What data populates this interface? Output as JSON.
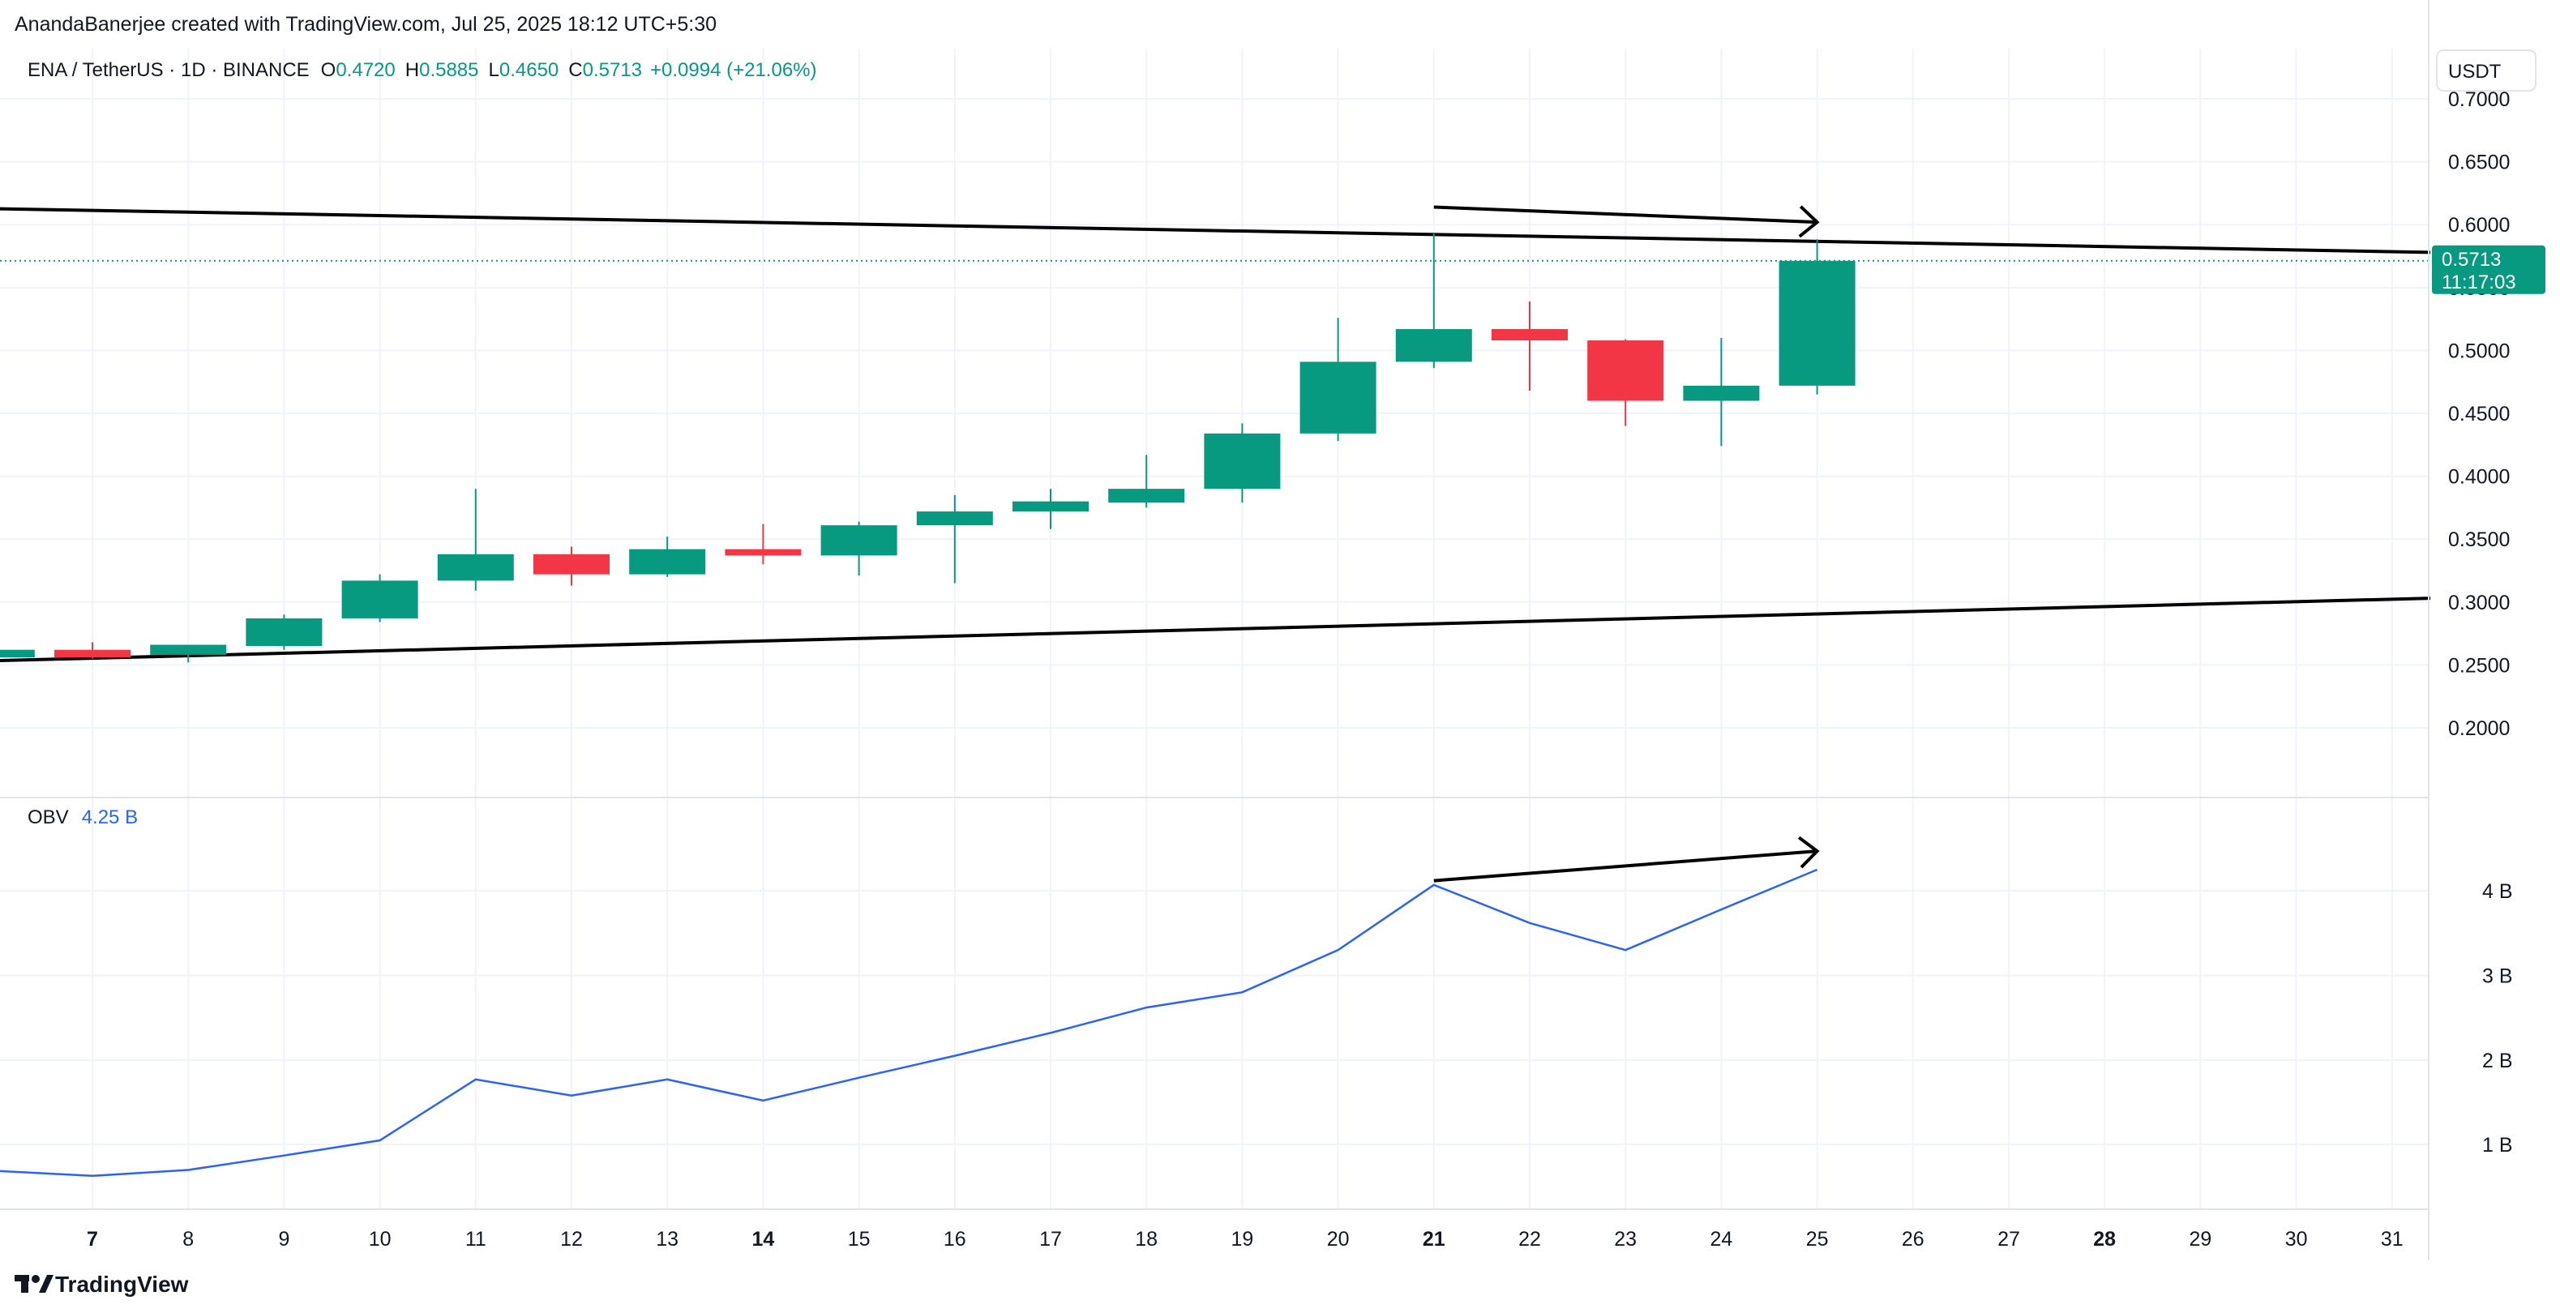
{
  "header": {
    "attribution": "AnandaBanerjee created with TradingView.com, Jul 25, 2025 18:12 UTC+5:30"
  },
  "legend": {
    "symbol": "ENA / TetherUS · 1D · BINANCE",
    "o_label": "O",
    "o_value": "0.4720",
    "h_label": "H",
    "h_value": "0.5885",
    "l_label": "L",
    "l_value": "0.4650",
    "c_label": "C",
    "c_value": "0.5713",
    "change": "+0.0994 (+21.06%)"
  },
  "price_axis": {
    "currency": "USDT",
    "last_price": "0.5713",
    "countdown": "11:17:03"
  },
  "obv_legend": {
    "name": "OBV",
    "value": "4.25 B"
  },
  "footer": {
    "brand": "TradingView"
  },
  "colors": {
    "up": "#089981",
    "down": "#f23645",
    "obv_line": "#2962ff",
    "trendline": "#000000",
    "grid": "#f0f3fa",
    "text": "#131722"
  },
  "chart_data": [
    {
      "type": "candlestick",
      "title": "ENA / TetherUS · 1D · BINANCE",
      "x_ticks": [
        "7",
        "8",
        "9",
        "10",
        "11",
        "12",
        "13",
        "14",
        "15",
        "16",
        "17",
        "18",
        "19",
        "20",
        "21",
        "22",
        "23",
        "24",
        "25",
        "26",
        "27",
        "28",
        "29",
        "30",
        "31"
      ],
      "x_ticks_bold": [
        "7",
        "14",
        "21",
        "28"
      ],
      "y_ticks": [
        "0.7000",
        "0.6500",
        "0.6000",
        "0.5500",
        "0.5000",
        "0.4500",
        "0.4000",
        "0.3500",
        "0.3000",
        "0.2500",
        "0.2000"
      ],
      "ylim": [
        0.16,
        0.74
      ],
      "grid": true,
      "candles": [
        {
          "day": 6,
          "o": 0.256,
          "h": 0.263,
          "l": 0.252,
          "c": 0.262
        },
        {
          "day": 7,
          "o": 0.262,
          "h": 0.268,
          "l": 0.255,
          "c": 0.256
        },
        {
          "day": 8,
          "o": 0.258,
          "h": 0.265,
          "l": 0.252,
          "c": 0.266
        },
        {
          "day": 9,
          "o": 0.265,
          "h": 0.29,
          "l": 0.262,
          "c": 0.287
        },
        {
          "day": 10,
          "o": 0.287,
          "h": 0.322,
          "l": 0.284,
          "c": 0.317
        },
        {
          "day": 11,
          "o": 0.317,
          "h": 0.39,
          "l": 0.309,
          "c": 0.338
        },
        {
          "day": 12,
          "o": 0.338,
          "h": 0.344,
          "l": 0.313,
          "c": 0.322
        },
        {
          "day": 13,
          "o": 0.322,
          "h": 0.352,
          "l": 0.32,
          "c": 0.342
        },
        {
          "day": 14,
          "o": 0.342,
          "h": 0.362,
          "l": 0.33,
          "c": 0.337
        },
        {
          "day": 15,
          "o": 0.337,
          "h": 0.364,
          "l": 0.321,
          "c": 0.361
        },
        {
          "day": 16,
          "o": 0.361,
          "h": 0.385,
          "l": 0.315,
          "c": 0.372
        },
        {
          "day": 17,
          "o": 0.372,
          "h": 0.39,
          "l": 0.358,
          "c": 0.38
        },
        {
          "day": 18,
          "o": 0.379,
          "h": 0.417,
          "l": 0.375,
          "c": 0.39
        },
        {
          "day": 19,
          "o": 0.39,
          "h": 0.442,
          "l": 0.379,
          "c": 0.434
        },
        {
          "day": 20,
          "o": 0.434,
          "h": 0.526,
          "l": 0.428,
          "c": 0.491
        },
        {
          "day": 21,
          "o": 0.491,
          "h": 0.593,
          "l": 0.486,
          "c": 0.517
        },
        {
          "day": 22,
          "o": 0.517,
          "h": 0.539,
          "l": 0.468,
          "c": 0.508
        },
        {
          "day": 23,
          "o": 0.508,
          "h": 0.509,
          "l": 0.44,
          "c": 0.46
        },
        {
          "day": 24,
          "o": 0.46,
          "h": 0.51,
          "l": 0.424,
          "c": 0.472
        },
        {
          "day": 25,
          "o": 0.472,
          "h": 0.5885,
          "l": 0.465,
          "c": 0.5713
        }
      ],
      "trendlines": [
        {
          "x1": 5.8,
          "y1": 0.613,
          "x2": 31.4,
          "y2": 0.578
        },
        {
          "x1": 5.8,
          "y1": 0.253,
          "x2": 31.4,
          "y2": 0.303
        }
      ],
      "arrows": [
        {
          "x1": 21.0,
          "y1": 0.614,
          "x2": 25.0,
          "y2": 0.602
        }
      ],
      "last_price": 0.5713
    },
    {
      "type": "line",
      "title": "OBV",
      "y_ticks": [
        "4 B",
        "3 B",
        "2 B",
        "1 B"
      ],
      "ylim": [
        0.35,
        4.95
      ],
      "grid": true,
      "series": [
        {
          "name": "OBV",
          "x": [
            5.8,
            7,
            8,
            9,
            10,
            11,
            12,
            13,
            14,
            15,
            16,
            17,
            18,
            19,
            20,
            21,
            22,
            23,
            24,
            25
          ],
          "values": [
            0.7,
            0.63,
            0.7,
            0.87,
            1.05,
            1.77,
            1.58,
            1.77,
            1.52,
            1.79,
            2.05,
            2.32,
            2.62,
            2.8,
            3.3,
            4.07,
            3.62,
            3.3,
            3.78,
            4.25
          ]
        }
      ],
      "arrows": [
        {
          "x1": 21.0,
          "y1": 4.12,
          "x2": 25.0,
          "y2": 4.47
        }
      ]
    }
  ]
}
